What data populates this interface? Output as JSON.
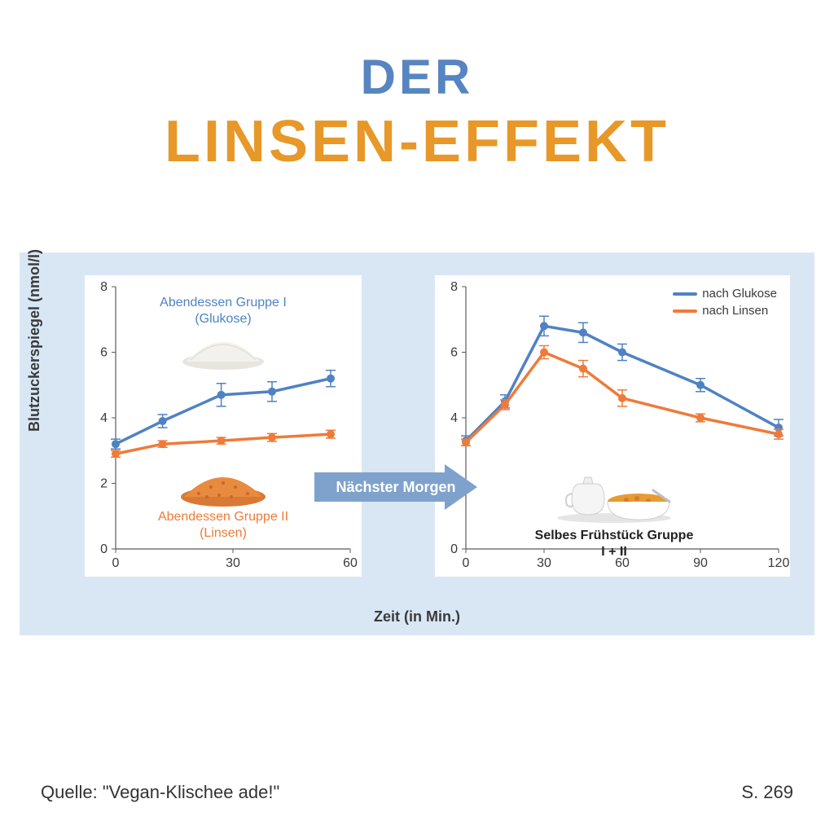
{
  "title": {
    "line1": "DER",
    "line2": "LINSEN-EFFEKT"
  },
  "colors": {
    "title_blue": "#5785c1",
    "title_orange": "#e79828",
    "panel_bg": "#d9e7f5",
    "glucose": "#4f82c3",
    "lentils": "#ee7b3a",
    "axis": "#5a5a5a",
    "arrow": "#7fa2cc"
  },
  "axes": {
    "y_label": "Blutzuckerspiegel (nmol/l)",
    "x_label": "Zeit (in Min.)",
    "y_ticks": [
      0,
      2,
      4,
      6,
      8
    ],
    "left_x_ticks": [
      0,
      30,
      60
    ],
    "right_x_ticks": [
      0,
      30,
      60,
      90,
      120
    ]
  },
  "left_chart": {
    "type": "line",
    "xlim": [
      0,
      60
    ],
    "ylim": [
      0,
      8
    ],
    "series": [
      {
        "name": "glucose",
        "color": "#4f82c3",
        "x": [
          0,
          12,
          27,
          40,
          55
        ],
        "y": [
          3.2,
          3.9,
          4.7,
          4.8,
          5.2
        ],
        "err": [
          0.15,
          0.2,
          0.35,
          0.3,
          0.25
        ]
      },
      {
        "name": "lentils",
        "color": "#ee7b3a",
        "x": [
          0,
          12,
          27,
          40,
          55
        ],
        "y": [
          2.9,
          3.2,
          3.3,
          3.4,
          3.5
        ],
        "err": [
          0.1,
          0.1,
          0.1,
          0.12,
          0.12
        ]
      }
    ],
    "annotations": {
      "top": {
        "text1": "Abendessen Gruppe I",
        "text2": "(Glukose)",
        "color": "#4f82c3"
      },
      "bottom": {
        "text1": "Abendessen Gruppe II",
        "text2": "(Linsen)",
        "color": "#ee7b3a"
      }
    }
  },
  "right_chart": {
    "type": "line",
    "xlim": [
      0,
      120
    ],
    "ylim": [
      0,
      8
    ],
    "series": [
      {
        "name": "glucose",
        "color": "#4f82c3",
        "x": [
          0,
          15,
          30,
          45,
          60,
          90,
          120
        ],
        "y": [
          3.3,
          4.5,
          6.8,
          6.6,
          6.0,
          5.0,
          3.7
        ],
        "err": [
          0.15,
          0.2,
          0.3,
          0.3,
          0.25,
          0.2,
          0.25
        ]
      },
      {
        "name": "lentils",
        "color": "#ee7b3a",
        "x": [
          0,
          15,
          30,
          45,
          60,
          90,
          120
        ],
        "y": [
          3.25,
          4.4,
          6.0,
          5.5,
          4.6,
          4.0,
          3.5
        ],
        "err": [
          0.1,
          0.15,
          0.2,
          0.25,
          0.25,
          0.12,
          0.15
        ]
      }
    ],
    "legend": {
      "a": "nach Glukose",
      "b": "nach Linsen"
    },
    "caption": "Selbes Frühstück Gruppe I + II"
  },
  "arrow_label": "Nächster Morgen",
  "footer": {
    "source": "Quelle: \"Vegan-Klischee ade!\"",
    "page": "S. 269"
  },
  "style": {
    "line_width": 3.5,
    "marker_radius": 5,
    "err_cap": 6,
    "title_fontsize_1": 60,
    "title_fontsize_2": 72,
    "axis_label_fontsize": 18,
    "tick_fontsize": 16
  }
}
